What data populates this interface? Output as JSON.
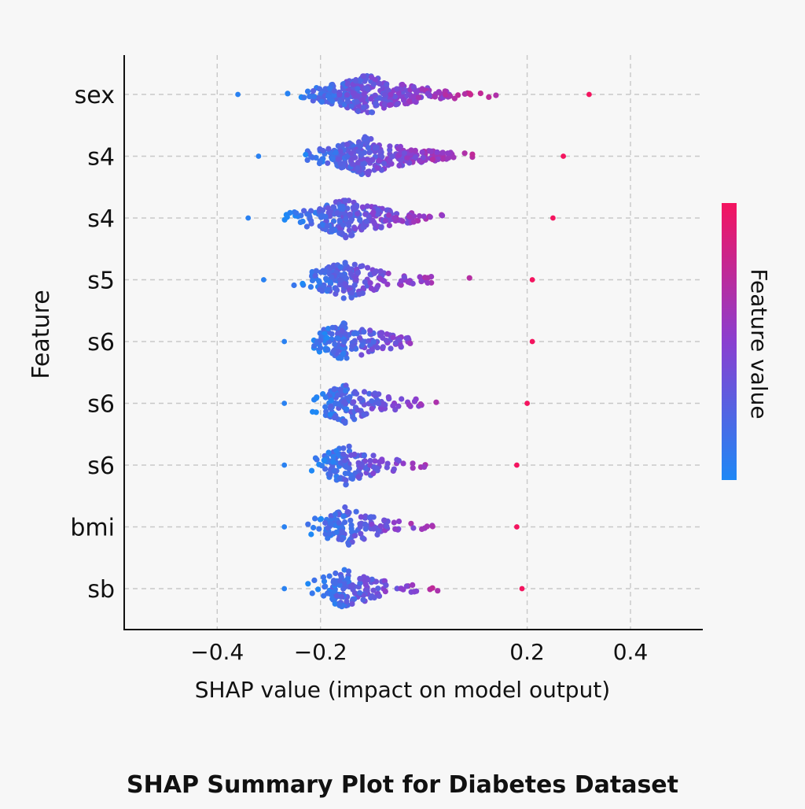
{
  "chart_data": {
    "type": "scatter",
    "subtype": "shap-beeswarm",
    "title": "SHAP Summary Plot for Diabetes Dataset",
    "xlabel": "SHAP value (impact on model output)",
    "ylabel": "Feature",
    "xlim": [
      -0.58,
      0.54
    ],
    "x_ticks": [
      -0.4,
      -0.2,
      0.2,
      0.4
    ],
    "x_tick_labels": [
      "−0.4",
      "−0.2",
      "0.2",
      "0.4"
    ],
    "grid": true,
    "colorbar": {
      "label": "Feature value",
      "low_color": "#1e88f5",
      "mid_color": "#8a3fd0",
      "high_color": "#f4145f"
    },
    "features": [
      {
        "name": "sex",
        "center": -0.11,
        "min": -0.36,
        "max": 0.32,
        "count": 320
      },
      {
        "name": "s4",
        "center": -0.11,
        "min": -0.32,
        "max": 0.27,
        "count": 280
      },
      {
        "name": "s4",
        "center": -0.15,
        "min": -0.34,
        "max": 0.25,
        "count": 220
      },
      {
        "name": "s5",
        "center": -0.15,
        "min": -0.31,
        "max": 0.21,
        "count": 180
      },
      {
        "name": "s6",
        "center": -0.15,
        "min": -0.27,
        "max": 0.21,
        "count": 160
      },
      {
        "name": "s6",
        "center": -0.15,
        "min": -0.27,
        "max": 0.2,
        "count": 140
      },
      {
        "name": "s6",
        "center": -0.15,
        "min": -0.27,
        "max": 0.18,
        "count": 130
      },
      {
        "name": "bmi",
        "center": -0.15,
        "min": -0.27,
        "max": 0.18,
        "count": 130
      },
      {
        "name": "sb",
        "center": -0.15,
        "min": -0.27,
        "max": 0.19,
        "count": 140
      }
    ]
  }
}
